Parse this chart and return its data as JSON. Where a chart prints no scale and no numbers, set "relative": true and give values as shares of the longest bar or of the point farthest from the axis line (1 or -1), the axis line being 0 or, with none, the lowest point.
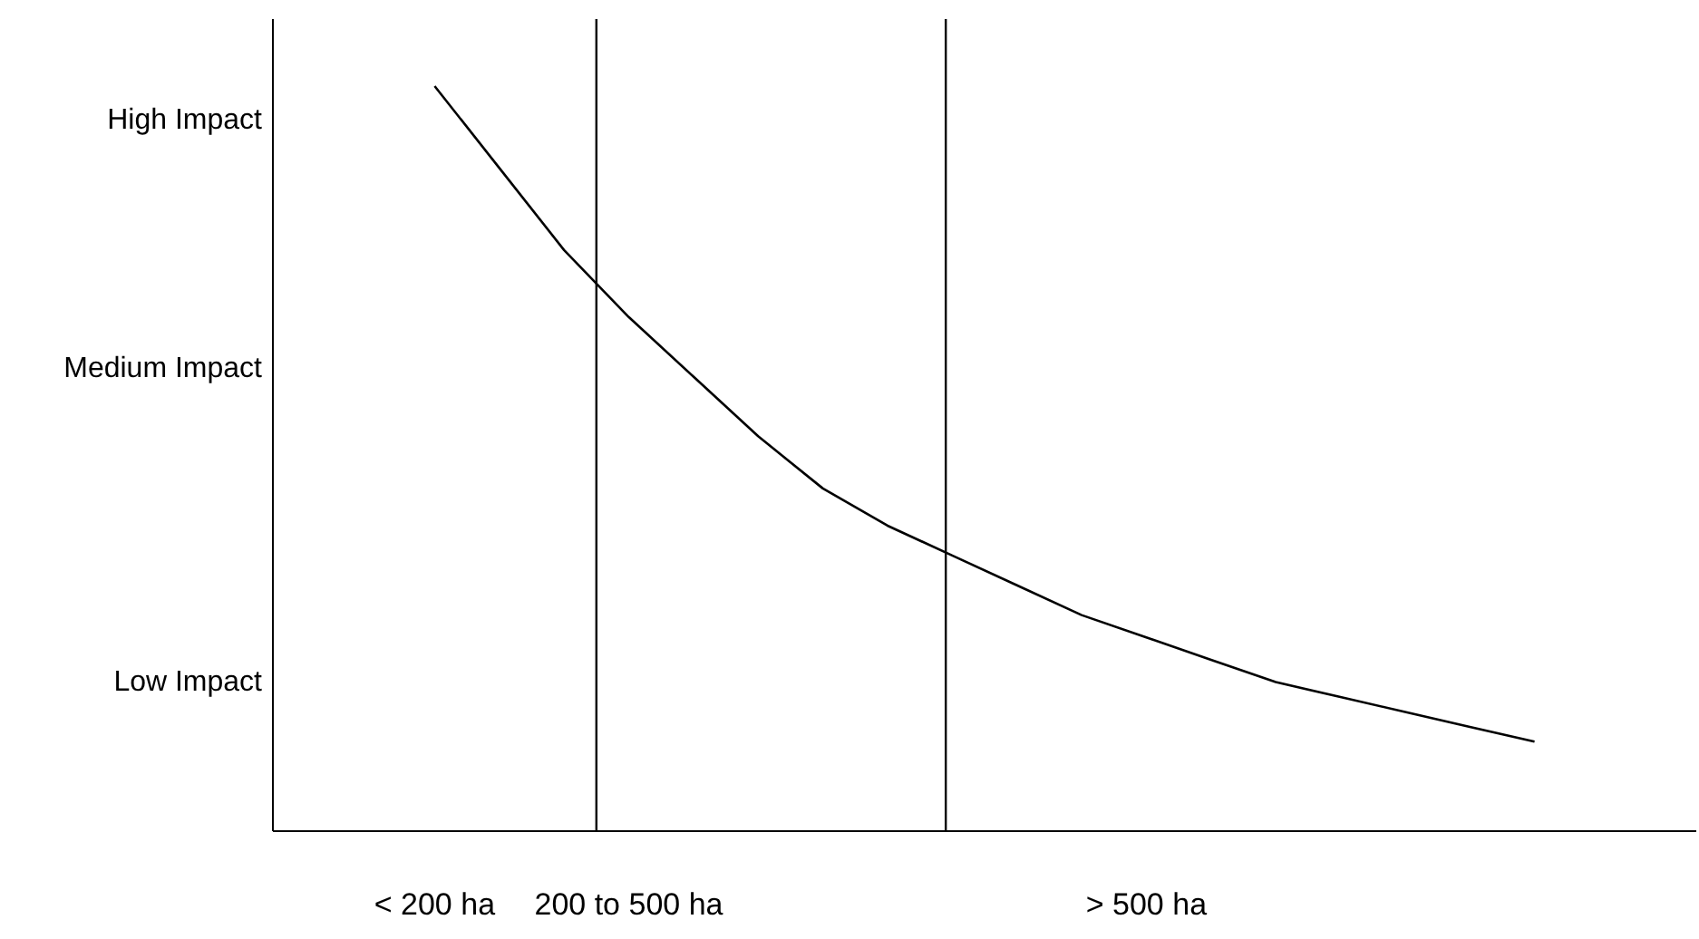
{
  "chart_data": {
    "type": "line",
    "relative": true,
    "categories": [
      null,
      null,
      "< 200 ha",
      null,
      null,
      "200 to 500 ha",
      null,
      null,
      null,
      null,
      null,
      null,
      null,
      "> 500 ha",
      null,
      null,
      null,
      null,
      null,
      null,
      null,
      null
    ],
    "values": [
      null,
      null,
      1,
      0.89,
      0.78,
      0.69,
      0.61,
      0.53,
      0.46,
      0.41,
      0.37,
      0.33,
      0.29,
      0.26,
      0.23,
      0.2,
      0.18,
      0.16,
      0.14,
      0.12,
      null,
      null
    ],
    "color": "#000000",
    "marker": "none",
    "line_style": "solid",
    "annotations": [
      "High Impact",
      "Medium Impact",
      "Low Impact"
    ]
  }
}
